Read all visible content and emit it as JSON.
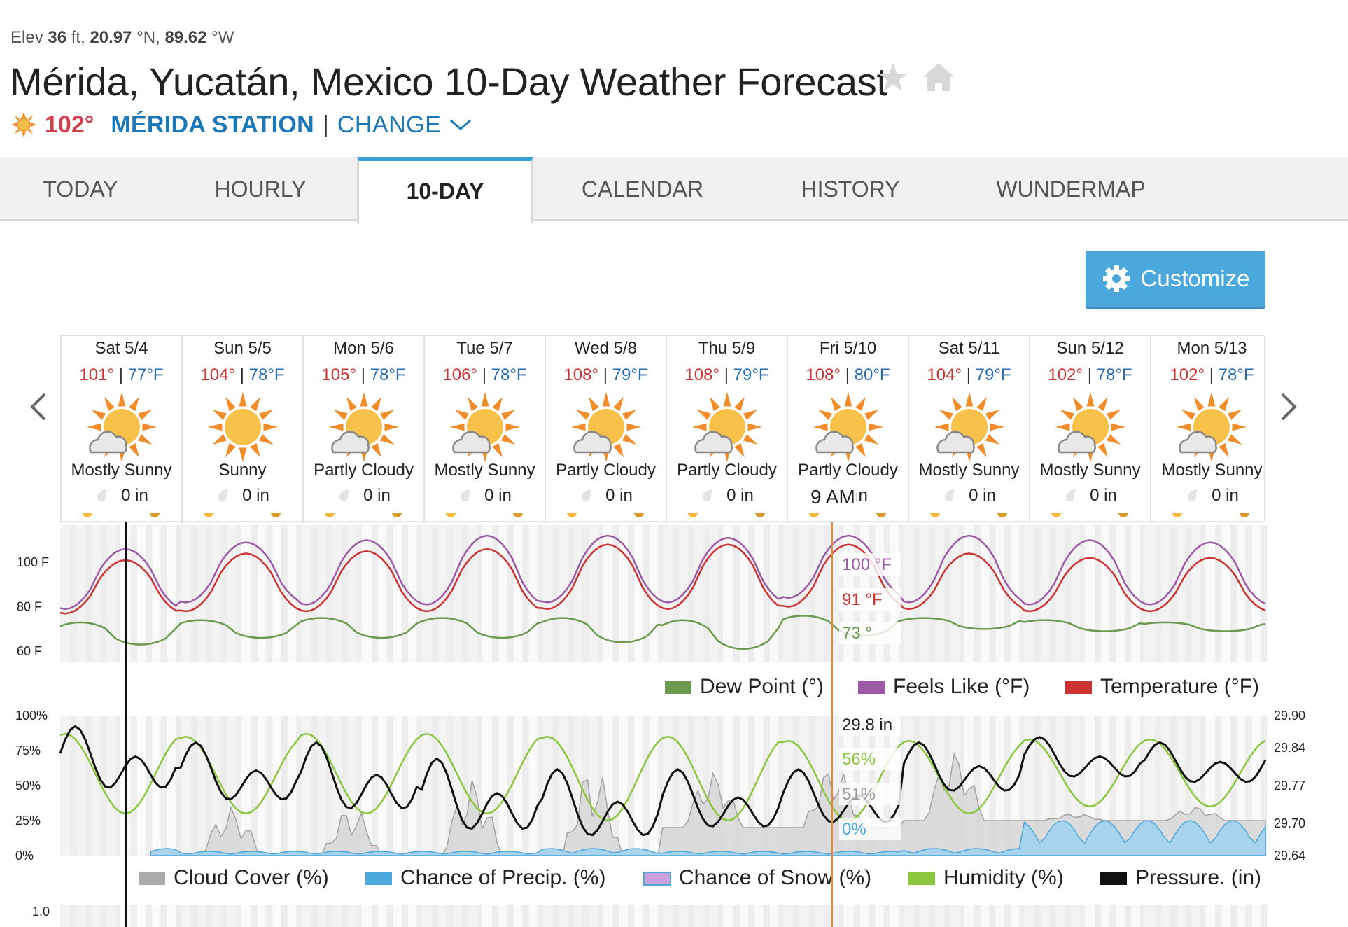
{
  "header": {
    "elev_label": "Elev",
    "elev_value": "36",
    "elev_unit": "ft,",
    "lat_value": "20.97",
    "lat_unit": "°N,",
    "lon_value": "89.62",
    "lon_unit": "°W",
    "title": "Mérida, Yucatán, Mexico 10-Day Weather Forecast",
    "current_temp": "102°",
    "station_name": "MÉRIDA STATION",
    "separator": "|",
    "change_label": "CHANGE",
    "icons": [
      "star-icon",
      "home-icon",
      "sun-icon",
      "chevron-down-icon"
    ]
  },
  "tabs": [
    {
      "label": "TODAY",
      "active": false
    },
    {
      "label": "HOURLY",
      "active": false
    },
    {
      "label": "10-DAY",
      "active": true
    },
    {
      "label": "CALENDAR",
      "active": false
    },
    {
      "label": "HISTORY",
      "active": false
    },
    {
      "label": "WUNDERMAP",
      "active": false
    }
  ],
  "customize_label": "Customize",
  "days": [
    {
      "name": "Sat 5/4",
      "hi": "101°",
      "lo": "77°F",
      "condition": "Mostly Sunny",
      "precip": "0 in",
      "cloud": true
    },
    {
      "name": "Sun 5/5",
      "hi": "104°",
      "lo": "78°F",
      "condition": "Sunny",
      "precip": "0 in",
      "cloud": false
    },
    {
      "name": "Mon 5/6",
      "hi": "105°",
      "lo": "78°F",
      "condition": "Partly Cloudy",
      "precip": "0 in",
      "cloud": true
    },
    {
      "name": "Tue 5/7",
      "hi": "106°",
      "lo": "78°F",
      "condition": "Mostly Sunny",
      "precip": "0 in",
      "cloud": true
    },
    {
      "name": "Wed 5/8",
      "hi": "108°",
      "lo": "79°F",
      "condition": "Partly Cloudy",
      "precip": "0 in",
      "cloud": true
    },
    {
      "name": "Thu 5/9",
      "hi": "108°",
      "lo": "79°F",
      "condition": "Partly Cloudy",
      "precip": "0 in",
      "cloud": true
    },
    {
      "name": "Fri 5/10",
      "hi": "108°",
      "lo": "80°F",
      "condition": "Partly Cloudy",
      "precip": "in",
      "cloud": true
    },
    {
      "name": "Sat 5/11",
      "hi": "104°",
      "lo": "79°F",
      "condition": "Mostly Sunny",
      "precip": "0 in",
      "cloud": true
    },
    {
      "name": "Sun 5/12",
      "hi": "102°",
      "lo": "78°F",
      "condition": "Mostly Sunny",
      "precip": "0 in",
      "cloud": true
    },
    {
      "name": "Mon 5/13",
      "hi": "102°",
      "lo": "78°F",
      "condition": "Mostly Sunny",
      "precip": "0 in",
      "cloud": true
    }
  ],
  "tooltip": {
    "time": "9 AM",
    "feels_like": "100 °F",
    "temperature": "91 °F",
    "dew_point": "73 °",
    "pressure": "29.8 in",
    "humidity": "56%",
    "cloud_cover": "51%",
    "precip_chance": "0%"
  },
  "colors": {
    "temperature": "#cc3333",
    "feels_like": "#9b59a6",
    "dew_point": "#6b9a4e",
    "humidity": "#8cc63f",
    "pressure": "#111111",
    "cloud_cover": "#aaaaaa",
    "precip": "#4aa8dc",
    "snow": "#c9a0dc",
    "accent": "#1a78b8"
  },
  "chart_data": [
    {
      "type": "line",
      "y_tick_labels": [
        "100 F",
        "80 F",
        "60 F"
      ],
      "y_ticks": [
        100,
        80,
        60
      ],
      "ylim": [
        55,
        118
      ],
      "x": [
        "Sat 5/4",
        "Sun 5/5",
        "Mon 5/6",
        "Tue 5/7",
        "Wed 5/8",
        "Thu 5/9",
        "Fri 5/10",
        "Sat 5/11",
        "Sun 5/12",
        "Mon 5/13"
      ],
      "legend": [
        "Dew Point (°)",
        "Feels Like (°F)",
        "Temperature (°F)"
      ],
      "legend_placement": "bottom-right",
      "series": [
        {
          "name": "Temperature (°F)",
          "daily_high": [
            101,
            104,
            105,
            106,
            108,
            108,
            108,
            104,
            102,
            102
          ],
          "daily_low": [
            77,
            78,
            78,
            78,
            79,
            79,
            80,
            79,
            78,
            78
          ]
        },
        {
          "name": "Feels Like (°F)",
          "daily_high": [
            106,
            109,
            110,
            112,
            112,
            111,
            112,
            112,
            110,
            109
          ],
          "daily_low": [
            79,
            82,
            81,
            81,
            82,
            82,
            84,
            82,
            81,
            81
          ]
        },
        {
          "name": "Dew Point (°)",
          "daily_high": [
            73,
            74,
            75,
            75,
            75,
            74,
            76,
            75,
            74,
            73
          ],
          "daily_low": [
            63,
            66,
            66,
            66,
            64,
            61,
            67,
            70,
            69,
            69
          ]
        }
      ]
    },
    {
      "type": "area",
      "y_tick_labels_left": [
        "100%",
        "75%",
        "50%",
        "25%",
        "0%"
      ],
      "y_ticks_left": [
        100,
        75,
        50,
        25,
        0
      ],
      "y_tick_labels_right": [
        "29.90",
        "29.84",
        "29.77",
        "29.70",
        "29.64"
      ],
      "y_ticks_right": [
        29.9,
        29.84,
        29.77,
        29.7,
        29.64
      ],
      "legend": [
        "Cloud Cover (%)",
        "Chance of Precip. (%)",
        "Chance of Snow (%)",
        "Humidity (%)",
        "Pressure. (in)"
      ],
      "legend_placement": "bottom",
      "series": [
        {
          "name": "Humidity (%)",
          "daily_max": [
            87,
            85,
            87,
            87,
            85,
            85,
            82,
            82,
            83,
            83
          ],
          "daily_min": [
            30,
            30,
            30,
            30,
            25,
            25,
            25,
            30,
            35,
            35
          ]
        },
        {
          "name": "Pressure. (in)",
          "daily_max": [
            29.88,
            29.85,
            29.85,
            29.82,
            29.8,
            29.8,
            29.8,
            29.85,
            29.86,
            29.85
          ],
          "daily_min": [
            29.74,
            29.72,
            29.7,
            29.66,
            29.65,
            29.67,
            29.68,
            29.74,
            29.77,
            29.76
          ]
        },
        {
          "name": "Cloud Cover (%)",
          "daily_max": [
            30,
            35,
            35,
            55,
            65,
            60,
            65,
            75,
            30,
            35
          ],
          "daily_min": [
            0,
            0,
            0,
            0,
            0,
            20,
            20,
            25,
            25,
            25
          ]
        },
        {
          "name": "Chance of Precip. (%)",
          "daily_max": [
            5,
            3,
            3,
            3,
            5,
            3,
            3,
            5,
            25,
            25
          ]
        }
      ]
    },
    {
      "type": "line",
      "y_tick_labels": [
        "1.0"
      ],
      "y_ticks": [
        1.0
      ]
    }
  ]
}
